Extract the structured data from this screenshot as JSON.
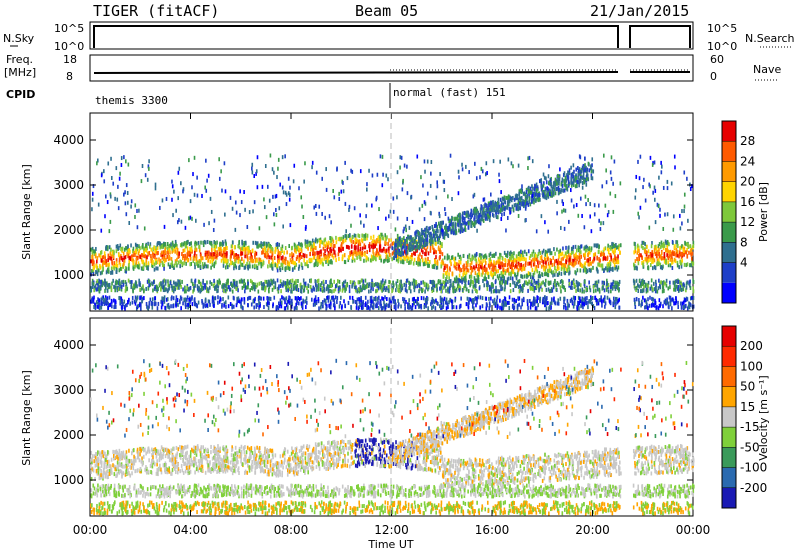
{
  "header": {
    "station": "TIGER (fitACF)",
    "beam": "Beam 05",
    "date": "21/Jan/2015"
  },
  "top_strips": {
    "nsky_label": "N.Sky",
    "nsky_ticks": [
      "10^5",
      "10^0"
    ],
    "nsearch_label": "N.Search",
    "nsearch_ticks": [
      "10^5",
      "10^0"
    ],
    "freq_label": "Freq.",
    "freq_unit": "[MHz]",
    "freq_ticks": [
      "18",
      "8"
    ],
    "nave_label": "Nave",
    "nave_ticks": [
      "60",
      "0"
    ],
    "cpid_label": "CPID",
    "cpid_segments": [
      {
        "label": "themis 3300",
        "start": 0.0,
        "end": 12.0
      },
      {
        "label": "normal (fast) 151",
        "start": 12.0,
        "end": 24.0
      }
    ]
  },
  "chart_data": [
    {
      "type": "heatmap",
      "name": "power-panel",
      "xlabel": "",
      "ylabel": "Slant Range [km]",
      "xlim": [
        0,
        24
      ],
      "ylim": [
        200,
        4600
      ],
      "yticks": [
        "4000",
        "3000",
        "2000",
        "1000"
      ],
      "ytick_values": [
        4000,
        3000,
        2000,
        1000
      ],
      "colorbar": {
        "label": "Power [dB]",
        "min": 0,
        "max": 32,
        "ticks": [
          "28",
          "24",
          "20",
          "16",
          "12",
          "8",
          "4"
        ],
        "tick_values": [
          28,
          24,
          20,
          16,
          12,
          8,
          4
        ],
        "colors": [
          "#0000ff",
          "#1e3fc8",
          "#2f6f8f",
          "#3a9a4a",
          "#7ec83a",
          "#ffd400",
          "#ff9a00",
          "#ff5a00",
          "#e60000"
        ]
      }
    },
    {
      "type": "heatmap",
      "name": "velocity-panel",
      "xlabel": "Time UT",
      "ylabel": "Slant Range [km]",
      "xlim": [
        0,
        24
      ],
      "ylim": [
        200,
        4600
      ],
      "xticks": [
        "00:00",
        "04:00",
        "08:00",
        "12:00",
        "16:00",
        "20:00",
        "00:00"
      ],
      "xtick_values": [
        0,
        4,
        8,
        12,
        16,
        20,
        24
      ],
      "yticks": [
        "4000",
        "3000",
        "2000",
        "1000"
      ],
      "ytick_values": [
        4000,
        3000,
        2000,
        1000
      ],
      "colorbar": {
        "label": "Velocity [m s⁻¹]",
        "ticks": [
          "200",
          "100",
          "50",
          "15",
          "-15",
          "-50",
          "-100",
          "-200"
        ],
        "colors": [
          "#1a1ab4",
          "#2a6ab0",
          "#3a9a5a",
          "#7fd03a",
          "#c8c8c8",
          "#ffa500",
          "#ff6a00",
          "#ff2a00",
          "#e60000"
        ]
      }
    }
  ]
}
